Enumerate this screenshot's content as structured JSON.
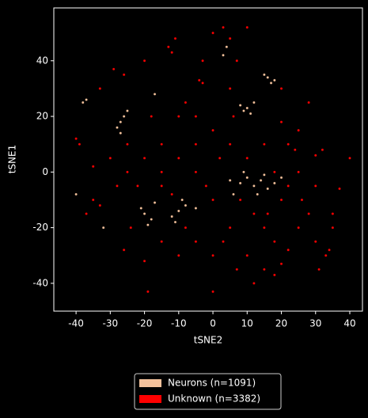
{
  "chart_data": {
    "type": "scatter",
    "xlabel": "tSNE2",
    "ylabel": "tSNE1",
    "xlim": [
      -46.5,
      43.7
    ],
    "ylim": [
      -50,
      59
    ],
    "xticks": [
      -40,
      -30,
      -20,
      -10,
      0,
      10,
      20,
      30,
      40
    ],
    "yticks": [
      -40,
      -20,
      0,
      20,
      40
    ],
    "legend": "bottom",
    "series": [
      {
        "name": "Neurons (n=1091)",
        "color": "#f4c29c",
        "x": [
          -38,
          -37,
          -27,
          -28,
          -26,
          -25,
          -27,
          -20,
          -18,
          -21,
          -19,
          -17,
          -10,
          -8,
          -12,
          -5,
          -9,
          -11,
          8,
          10,
          12,
          9,
          11,
          16,
          18,
          15,
          17,
          5,
          8,
          10,
          12,
          14,
          16,
          18,
          6,
          13,
          9,
          15,
          -40,
          -32,
          4,
          -17,
          3,
          20
        ],
        "values": [
          25,
          26,
          18,
          16,
          20,
          22,
          14,
          -15,
          -17,
          -13,
          -19,
          -11,
          -14,
          -12,
          -16,
          -13,
          -10,
          -18,
          24,
          23,
          25,
          22,
          21,
          34,
          33,
          35,
          32,
          -3,
          -4,
          -2,
          -5,
          -3,
          -6,
          -4,
          -8,
          -8,
          0,
          -1,
          -8,
          -20,
          45,
          28,
          42,
          -2
        ]
      },
      {
        "name": "Unknown (n=3382)",
        "color": "#ff0000",
        "x": [
          -40,
          -39,
          -13,
          -11,
          -12,
          0,
          3,
          5,
          10,
          -4,
          -3,
          -29,
          -26,
          -35,
          -33,
          -20,
          -19,
          0,
          33,
          34,
          35,
          37,
          40,
          32,
          30,
          22,
          24,
          20,
          25,
          20,
          15,
          18,
          10,
          15,
          18,
          20,
          5,
          0,
          -5,
          -10,
          -15,
          -20,
          -25,
          -22,
          -15,
          -5,
          0,
          5,
          10,
          15,
          -10,
          -5,
          5,
          -15,
          -10,
          -5,
          0,
          25,
          28,
          30,
          22,
          12,
          8,
          2,
          -2,
          -30,
          -28,
          -25,
          -18,
          -8,
          -15,
          -12,
          3,
          7,
          12,
          25,
          30,
          35,
          -35,
          -37,
          -24,
          -26,
          -8,
          16,
          22,
          26,
          18,
          6,
          -3,
          7,
          -20,
          28,
          20,
          -33,
          31
        ],
        "values": [
          12,
          10,
          45,
          48,
          43,
          50,
          52,
          48,
          52,
          33,
          32,
          37,
          35,
          -10,
          -12,
          -32,
          -43,
          -43,
          -30,
          -28,
          -20,
          -6,
          5,
          8,
          6,
          10,
          8,
          18,
          0,
          -10,
          -20,
          -25,
          -30,
          -35,
          -37,
          -33,
          -20,
          -10,
          0,
          5,
          10,
          5,
          0,
          -5,
          -5,
          10,
          15,
          10,
          5,
          10,
          20,
          20,
          30,
          -25,
          -30,
          -25,
          -30,
          -20,
          -15,
          -25,
          -28,
          -15,
          -10,
          5,
          -5,
          5,
          -5,
          10,
          20,
          25,
          0,
          -8,
          -25,
          -35,
          -40,
          15,
          -5,
          -15,
          2,
          -15,
          -20,
          -28,
          -20,
          -15,
          -5,
          -10,
          0,
          20,
          40,
          40,
          40,
          25,
          30,
          30,
          -35
        ]
      }
    ]
  }
}
